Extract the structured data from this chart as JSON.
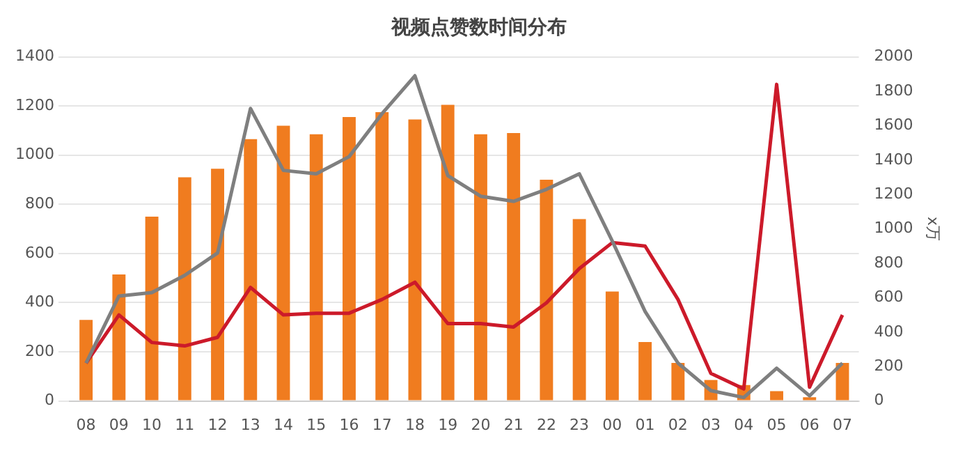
{
  "chart_data": {
    "type": "bar",
    "title": "视频点赞数时间分布",
    "y2label": "x万",
    "categories": [
      "08",
      "09",
      "10",
      "11",
      "12",
      "13",
      "14",
      "15",
      "16",
      "17",
      "18",
      "19",
      "20",
      "21",
      "22",
      "23",
      "00",
      "01",
      "02",
      "03",
      "04",
      "05",
      "06",
      "07"
    ],
    "series": [
      {
        "color": "#f07c1f",
        "values": [
          330,
          515,
          750,
          910,
          945,
          1065,
          1120,
          1085,
          1155,
          1175,
          1145,
          1205,
          1085,
          1090,
          900,
          740,
          445,
          240,
          155,
          85,
          65,
          40,
          15,
          155
        ]
      },
      {
        "type": "line",
        "axis": "y2",
        "color": "#7f7f7f",
        "values": [
          220,
          610,
          630,
          730,
          860,
          1700,
          1340,
          1320,
          1420,
          1670,
          1890,
          1310,
          1190,
          1160,
          1230,
          1320,
          930,
          520,
          220,
          60,
          20,
          190,
          30,
          220
        ]
      },
      {
        "type": "line",
        "axis": "y2",
        "color": "#cc1a2a",
        "values": [
          220,
          500,
          340,
          320,
          370,
          660,
          500,
          510,
          510,
          590,
          690,
          450,
          450,
          430,
          570,
          770,
          920,
          900,
          590,
          160,
          70,
          1840,
          80,
          500
        ]
      }
    ],
    "ylim": [
      0,
      1400
    ],
    "yticks": [
      0,
      200,
      400,
      600,
      800,
      1000,
      1200,
      1400
    ],
    "y2lim": [
      0,
      2000
    ],
    "y2ticks": [
      0,
      200,
      400,
      600,
      800,
      1000,
      1200,
      1400,
      1600,
      1800,
      2000
    ],
    "grid": "y",
    "legend": false,
    "marker": "none",
    "line_style": "solid"
  }
}
